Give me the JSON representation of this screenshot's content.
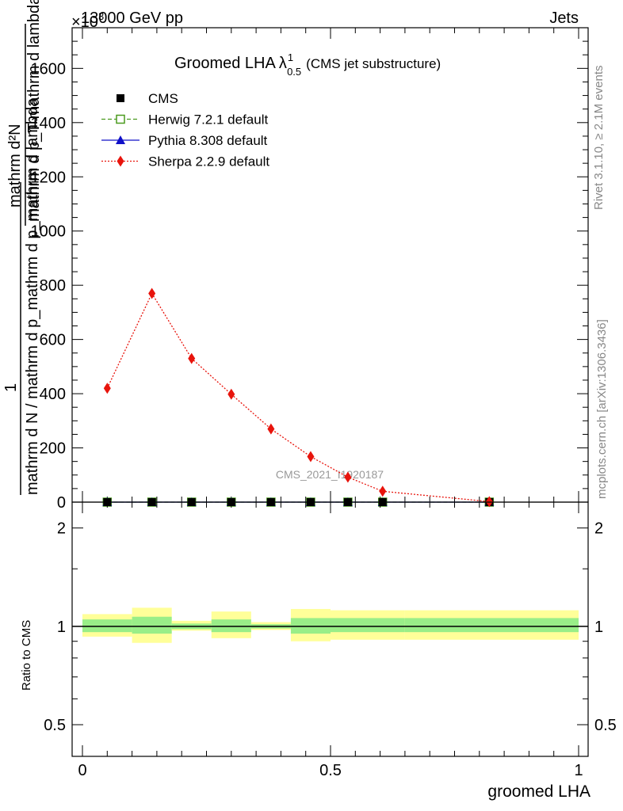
{
  "header": {
    "left": "13000 GeV pp",
    "right": "Jets",
    "exponent": "×10",
    "exponent_power": "3"
  },
  "side_labels": {
    "rivet": "Rivet 3.1.10, ≥ 2.1M events",
    "mcplots": "mcplots.cern.ch [arXiv:1306.3436]"
  },
  "watermark": "CMS_2021_I1920187",
  "chart_data": {
    "type": "line",
    "title_main": "Groomed LHA",
    "title_lambda": "λ",
    "title_sup": "1",
    "title_sub": "0.5",
    "title_tail": "(CMS jet substructure)",
    "ylabel_numerator": "1",
    "ylabel_denominator": "mathrm d N / mathrm d p_mathrm d p_mathrm d lambda",
    "ylabel_top_numerator": "mathrm d²N",
    "ylabel_top_denominator": "mathrm d p_T mathrm d lambda",
    "xlabel": "groomed LHA",
    "ratio_ylabel": "Ratio to CMS",
    "xlim": [
      0,
      1
    ],
    "ylim": [
      0,
      1750
    ],
    "ratio_ylim": [
      0.4,
      2.4
    ],
    "xticks": [
      0,
      0.5,
      1
    ],
    "xtick_labels": [
      "0",
      "0.5",
      "1"
    ],
    "yticks": [
      0,
      200,
      400,
      600,
      800,
      1000,
      1200,
      1400,
      1600
    ],
    "ytick_labels": [
      "0",
      "200",
      "400",
      "600",
      "800",
      "1000",
      "1200",
      "1400",
      "1600"
    ],
    "ratio_yticks": [
      0.5,
      1,
      2
    ],
    "ratio_ytick_labels": [
      "0.5",
      "1",
      "2"
    ],
    "legend_position": "top-left",
    "series": [
      {
        "name": "CMS",
        "marker": "square-filled",
        "color": "#000000",
        "x": [
          0.05,
          0.14,
          0.22,
          0.3,
          0.38,
          0.46,
          0.535,
          0.605,
          0.82
        ],
        "y": [
          0,
          0,
          0,
          0,
          0,
          0,
          0,
          0,
          0
        ]
      },
      {
        "name": "Herwig 7.2.1 default",
        "marker": "square-open",
        "color": "#4a9a1e",
        "line": "dashed",
        "x": [
          0.05,
          0.14,
          0.22,
          0.3,
          0.38,
          0.46,
          0.535,
          0.605,
          0.82
        ],
        "y": [
          0,
          0,
          0,
          0,
          0,
          0,
          0,
          0,
          0
        ]
      },
      {
        "name": "Pythia 8.308 default",
        "marker": "triangle",
        "color": "#1010c8",
        "line": "solid",
        "x": [
          0.05,
          0.14,
          0.22,
          0.3,
          0.38,
          0.46,
          0.535,
          0.605,
          0.82
        ],
        "y": [
          0,
          0,
          0,
          0,
          0,
          0,
          0,
          0,
          0
        ]
      },
      {
        "name": "Sherpa 2.2.9 default",
        "marker": "diamond",
        "color": "#e8140c",
        "line": "dotted",
        "x": [
          0.05,
          0.14,
          0.22,
          0.3,
          0.38,
          0.46,
          0.535,
          0.605,
          0.82
        ],
        "y": [
          420,
          770,
          530,
          398,
          270,
          168,
          92,
          40,
          2
        ]
      }
    ],
    "ratio_bands": [
      {
        "x0": 0.0,
        "x1": 0.1,
        "inner": [
          0.96,
          1.05
        ],
        "outer": [
          0.93,
          1.09
        ]
      },
      {
        "x0": 0.1,
        "x1": 0.18,
        "inner": [
          0.95,
          1.07
        ],
        "outer": [
          0.89,
          1.14
        ]
      },
      {
        "x0": 0.18,
        "x1": 0.26,
        "inner": [
          0.98,
          1.02
        ],
        "outer": [
          0.97,
          1.04
        ]
      },
      {
        "x0": 0.26,
        "x1": 0.34,
        "inner": [
          0.96,
          1.05
        ],
        "outer": [
          0.92,
          1.11
        ]
      },
      {
        "x0": 0.34,
        "x1": 0.42,
        "inner": [
          0.985,
          1.015
        ],
        "outer": [
          0.975,
          1.03
        ]
      },
      {
        "x0": 0.42,
        "x1": 0.5,
        "inner": [
          0.95,
          1.06
        ],
        "outer": [
          0.9,
          1.13
        ]
      },
      {
        "x0": 0.5,
        "x1": 0.65,
        "inner": [
          0.96,
          1.06
        ],
        "outer": [
          0.91,
          1.12
        ]
      },
      {
        "x0": 0.65,
        "x1": 1.0,
        "inner": [
          0.96,
          1.06
        ],
        "outer": [
          0.91,
          1.12
        ]
      }
    ]
  }
}
